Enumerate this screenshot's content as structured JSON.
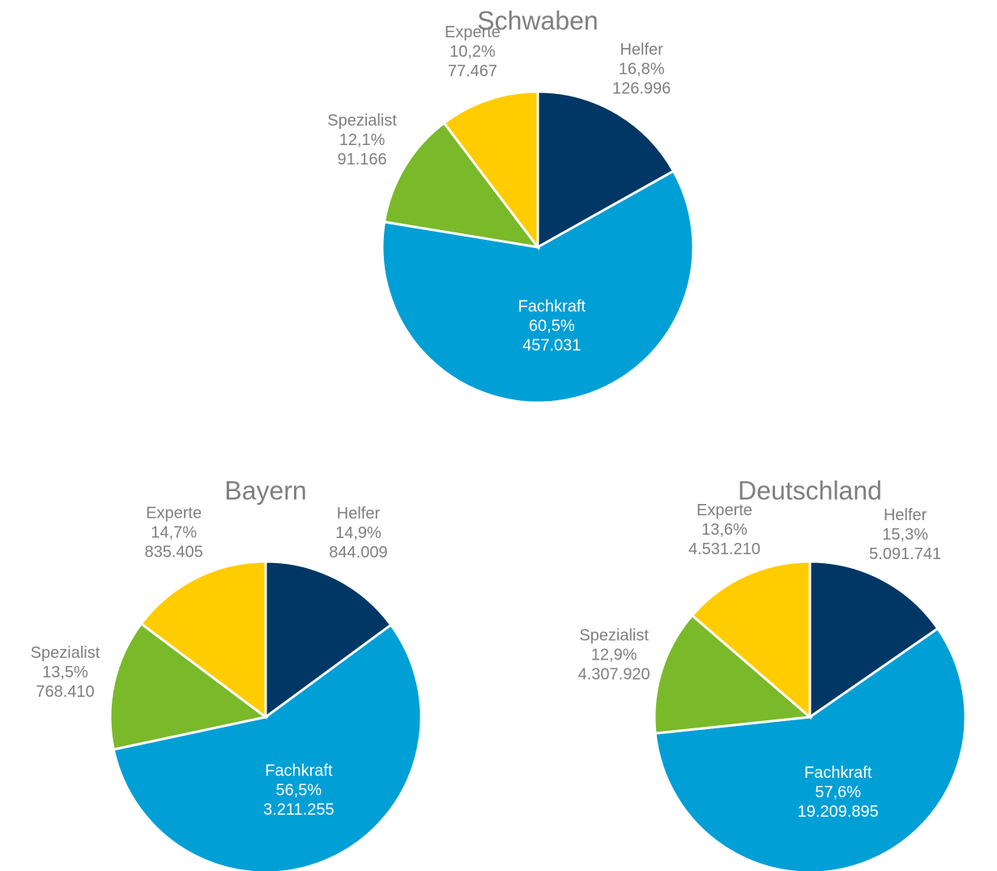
{
  "chart_data": [
    {
      "type": "pie",
      "title": "Schwaben",
      "categories": [
        "Helfer",
        "Fachkraft",
        "Spezialist",
        "Experte"
      ],
      "colors": [
        "#003764",
        "#009fd6",
        "#7ab929",
        "#ffcc00"
      ],
      "values": [
        126996,
        457031,
        91166,
        77467
      ],
      "value_labels": [
        "126.996",
        "457.031",
        "91.166",
        "77.467"
      ],
      "percentages": [
        16.8,
        60.5,
        12.1,
        10.2
      ],
      "percentage_labels": [
        "16,8%",
        "60,5%",
        "12,1%",
        "10,2%"
      ]
    },
    {
      "type": "pie",
      "title": "Bayern",
      "categories": [
        "Helfer",
        "Fachkraft",
        "Spezialist",
        "Experte"
      ],
      "colors": [
        "#003764",
        "#009fd6",
        "#7ab929",
        "#ffcc00"
      ],
      "values": [
        844009,
        3211255,
        768410,
        835405
      ],
      "value_labels": [
        "844.009",
        "3.211.255",
        "768.410",
        "835.405"
      ],
      "percentages": [
        14.9,
        56.5,
        13.5,
        14.7
      ],
      "percentage_labels": [
        "14,9%",
        "56,5%",
        "13,5%",
        "14,7%"
      ]
    },
    {
      "type": "pie",
      "title": "Deutschland",
      "categories": [
        "Helfer",
        "Fachkraft",
        "Spezialist",
        "Experte"
      ],
      "colors": [
        "#003764",
        "#009fd6",
        "#7ab929",
        "#ffcc00"
      ],
      "values": [
        5091741,
        19209895,
        4307920,
        4531210
      ],
      "value_labels": [
        "5.091.741",
        "19.209.895",
        "4.307.920",
        "4.531.210"
      ],
      "percentages": [
        15.3,
        57.6,
        12.9,
        13.6
      ],
      "percentage_labels": [
        "15,3%",
        "57,6%",
        "12,9%",
        "13,6%"
      ]
    }
  ]
}
